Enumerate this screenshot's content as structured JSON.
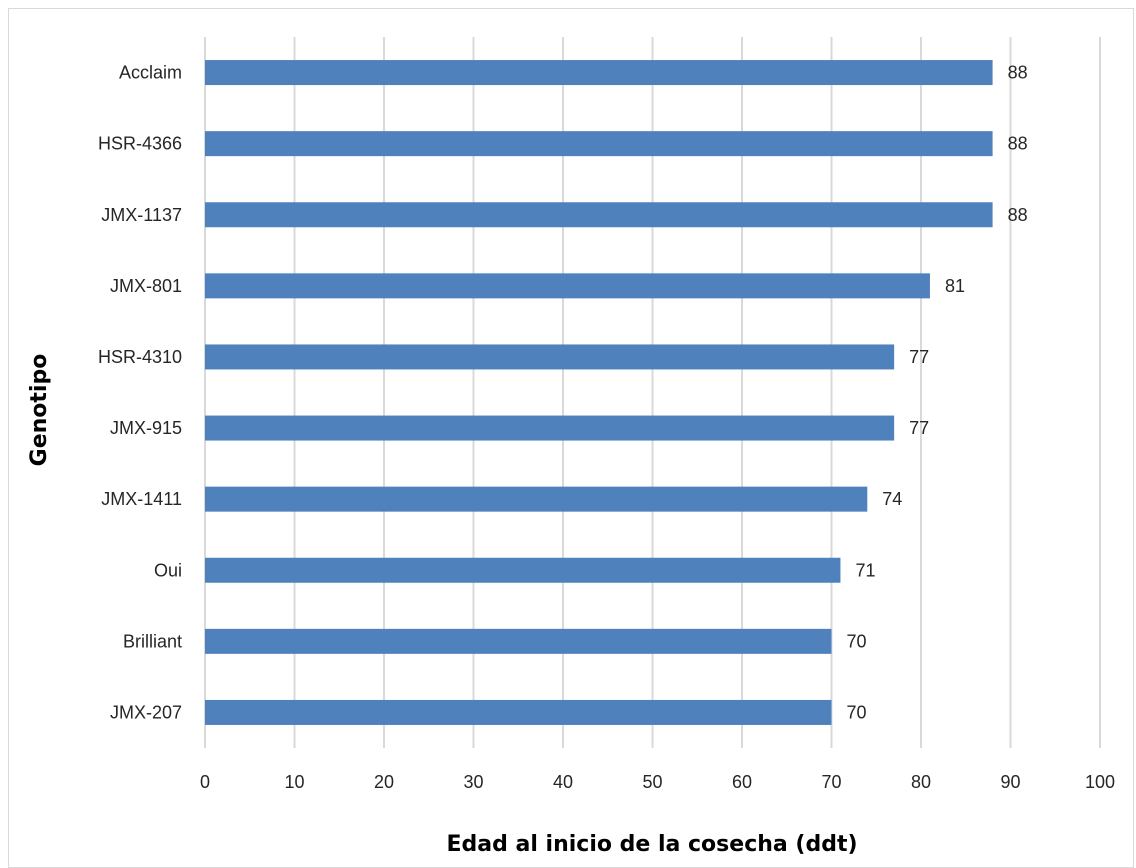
{
  "chart_data": {
    "type": "bar",
    "orientation": "horizontal",
    "categories": [
      "Acclaim",
      "HSR-4366",
      "JMX-1137",
      "JMX-801",
      "HSR-4310",
      "JMX-915",
      "JMX-1411",
      "Oui",
      "Brilliant",
      "JMX-207"
    ],
    "values": [
      88,
      88,
      88,
      81,
      77,
      77,
      74,
      71,
      70,
      70
    ],
    "data_labels": [
      "88",
      "88",
      "88",
      "81",
      "77",
      "77",
      "74",
      "71",
      "70",
      "70"
    ],
    "title": "",
    "xlabel": "Edad al inicio de la cosecha (ddt)",
    "ylabel": "Genotipo",
    "xlim": [
      0,
      100
    ],
    "xticks": [
      "0",
      "10",
      "20",
      "30",
      "40",
      "50",
      "60",
      "70",
      "80",
      "90",
      "100"
    ],
    "grid": "vertical",
    "legend": "none",
    "bar_color": "#4f81bd",
    "grid_color": "#d9d9d9"
  }
}
